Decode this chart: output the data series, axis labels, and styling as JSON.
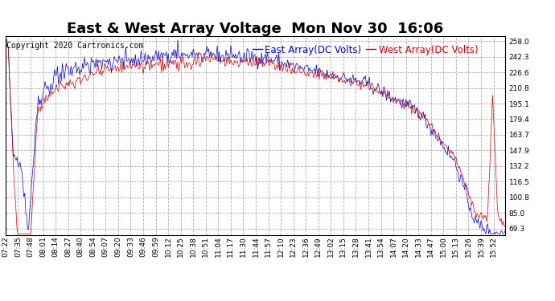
{
  "title": "East & West Array Voltage  Mon Nov 30  16:06",
  "copyright": "Copyright 2020 Cartronics.com",
  "legend_east": "East Array(DC Volts)",
  "legend_west": "West Array(DC Volts)",
  "east_color": "#0000cc",
  "west_color": "#cc0000",
  "background_color": "#ffffff",
  "grid_color": "#999999",
  "yticks": [
    69.3,
    85.0,
    100.8,
    116.5,
    132.2,
    147.9,
    163.7,
    179.4,
    195.1,
    210.8,
    226.6,
    242.3,
    258.0
  ],
  "ymin": 63.0,
  "ymax": 263.0,
  "title_fontsize": 13,
  "legend_fontsize": 8.5,
  "tick_fontsize": 6.5,
  "copyright_fontsize": 7,
  "num_points": 520
}
